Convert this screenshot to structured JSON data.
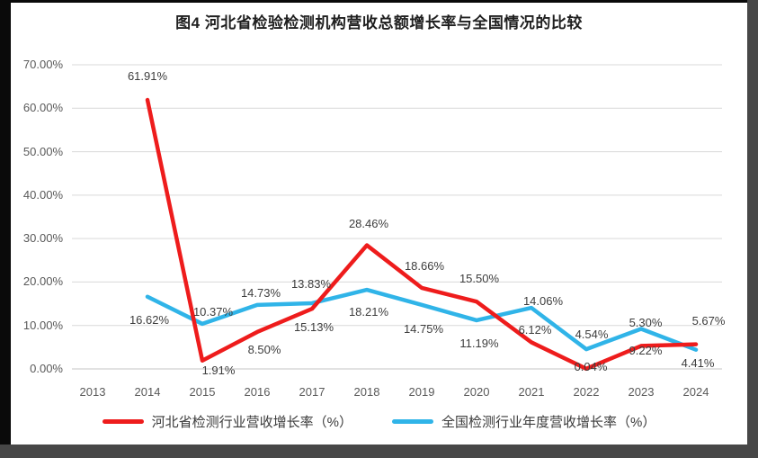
{
  "page": {
    "title": "图4 河北省检验检测机构营收总额增长率与全国情况的比较"
  },
  "colors": {
    "hebei_line": "#ee1c1c",
    "national_line": "#30b4e8",
    "gridline": "#d9d9d9",
    "axis_text": "#595959",
    "label_text": "#3d3d3d"
  },
  "chart_data": {
    "type": "line",
    "title": "图4 河北省检验检测机构营收总额增长率与全国情况的比较",
    "categories": [
      "2013",
      "2014",
      "2015",
      "2016",
      "2017",
      "2018",
      "2019",
      "2020",
      "2021",
      "2022",
      "2023",
      "2024"
    ],
    "xlabel": "",
    "ylabel": "",
    "ylim": [
      0,
      70
    ],
    "grid": true,
    "legend_position": "bottom",
    "y_axis": {
      "min": 0,
      "max": 70,
      "step": 10,
      "tick_labels": [
        "70.00%",
        "60.00%",
        "50.00%",
        "40.00%",
        "30.00%",
        "20.00%",
        "10.00%",
        "0.00%"
      ]
    },
    "series": [
      {
        "name": "河北省检测行业营收增长率（%）",
        "color": "#ee1c1c",
        "points": [
          {
            "x": "2014",
            "value": 61.91,
            "label": "61.91%",
            "dx": 0,
            "dy": -26
          },
          {
            "x": "2015",
            "value": 1.91,
            "label": "1.91%",
            "dx": 18,
            "dy": 11
          },
          {
            "x": "2016",
            "value": 8.5,
            "label": "8.50%",
            "dx": 8,
            "dy": 20
          },
          {
            "x": "2017",
            "value": 13.83,
            "label": "13.83%",
            "dx": -1,
            "dy": -27
          },
          {
            "x": "2018",
            "value": 28.46,
            "label": "28.46%",
            "dx": 2,
            "dy": -24
          },
          {
            "x": "2019",
            "value": 18.66,
            "label": "18.66%",
            "dx": 3,
            "dy": -24
          },
          {
            "x": "2020",
            "value": 15.5,
            "label": "15.50%",
            "dx": 3,
            "dy": -25
          },
          {
            "x": "2021",
            "value": 6.12,
            "label": "6.12%",
            "dx": 4,
            "dy": -13
          },
          {
            "x": "2022",
            "value": 0.04,
            "label": "0.04%",
            "dx": 5,
            "dy": -2
          },
          {
            "x": "2023",
            "value": 5.3,
            "label": "5.30%",
            "dx": 5,
            "dy": -25
          },
          {
            "x": "2024",
            "value": 5.67,
            "label": "5.67%",
            "dx": 14,
            "dy": -26
          }
        ]
      },
      {
        "name": "全国检测行业年度营收增长率（%）",
        "color": "#30b4e8",
        "points": [
          {
            "x": "2014",
            "value": 16.62,
            "label": "16.62%",
            "dx": 2,
            "dy": 26
          },
          {
            "x": "2015",
            "value": 10.37,
            "label": "10.37%",
            "dx": 12,
            "dy": -13
          },
          {
            "x": "2016",
            "value": 14.73,
            "label": "14.73%",
            "dx": 4,
            "dy": -13
          },
          {
            "x": "2017",
            "value": 15.13,
            "label": "15.13%",
            "dx": 2,
            "dy": 27
          },
          {
            "x": "2018",
            "value": 18.21,
            "label": "18.21%",
            "dx": 2,
            "dy": 25
          },
          {
            "x": "2019",
            "value": 14.75,
            "label": "14.75%",
            "dx": 2,
            "dy": 27
          },
          {
            "x": "2020",
            "value": 11.19,
            "label": "11.19%",
            "dx": 3,
            "dy": 26
          },
          {
            "x": "2021",
            "value": 14.06,
            "label": "14.06%",
            "dx": 13,
            "dy": -7
          },
          {
            "x": "2022",
            "value": 4.54,
            "label": "4.54%",
            "dx": 6,
            "dy": -16
          },
          {
            "x": "2023",
            "value": 9.22,
            "label": "9.22%",
            "dx": 5,
            "dy": 25
          },
          {
            "x": "2024",
            "value": 4.41,
            "label": "4.41%",
            "dx": 2,
            "dy": 15
          }
        ]
      }
    ]
  }
}
